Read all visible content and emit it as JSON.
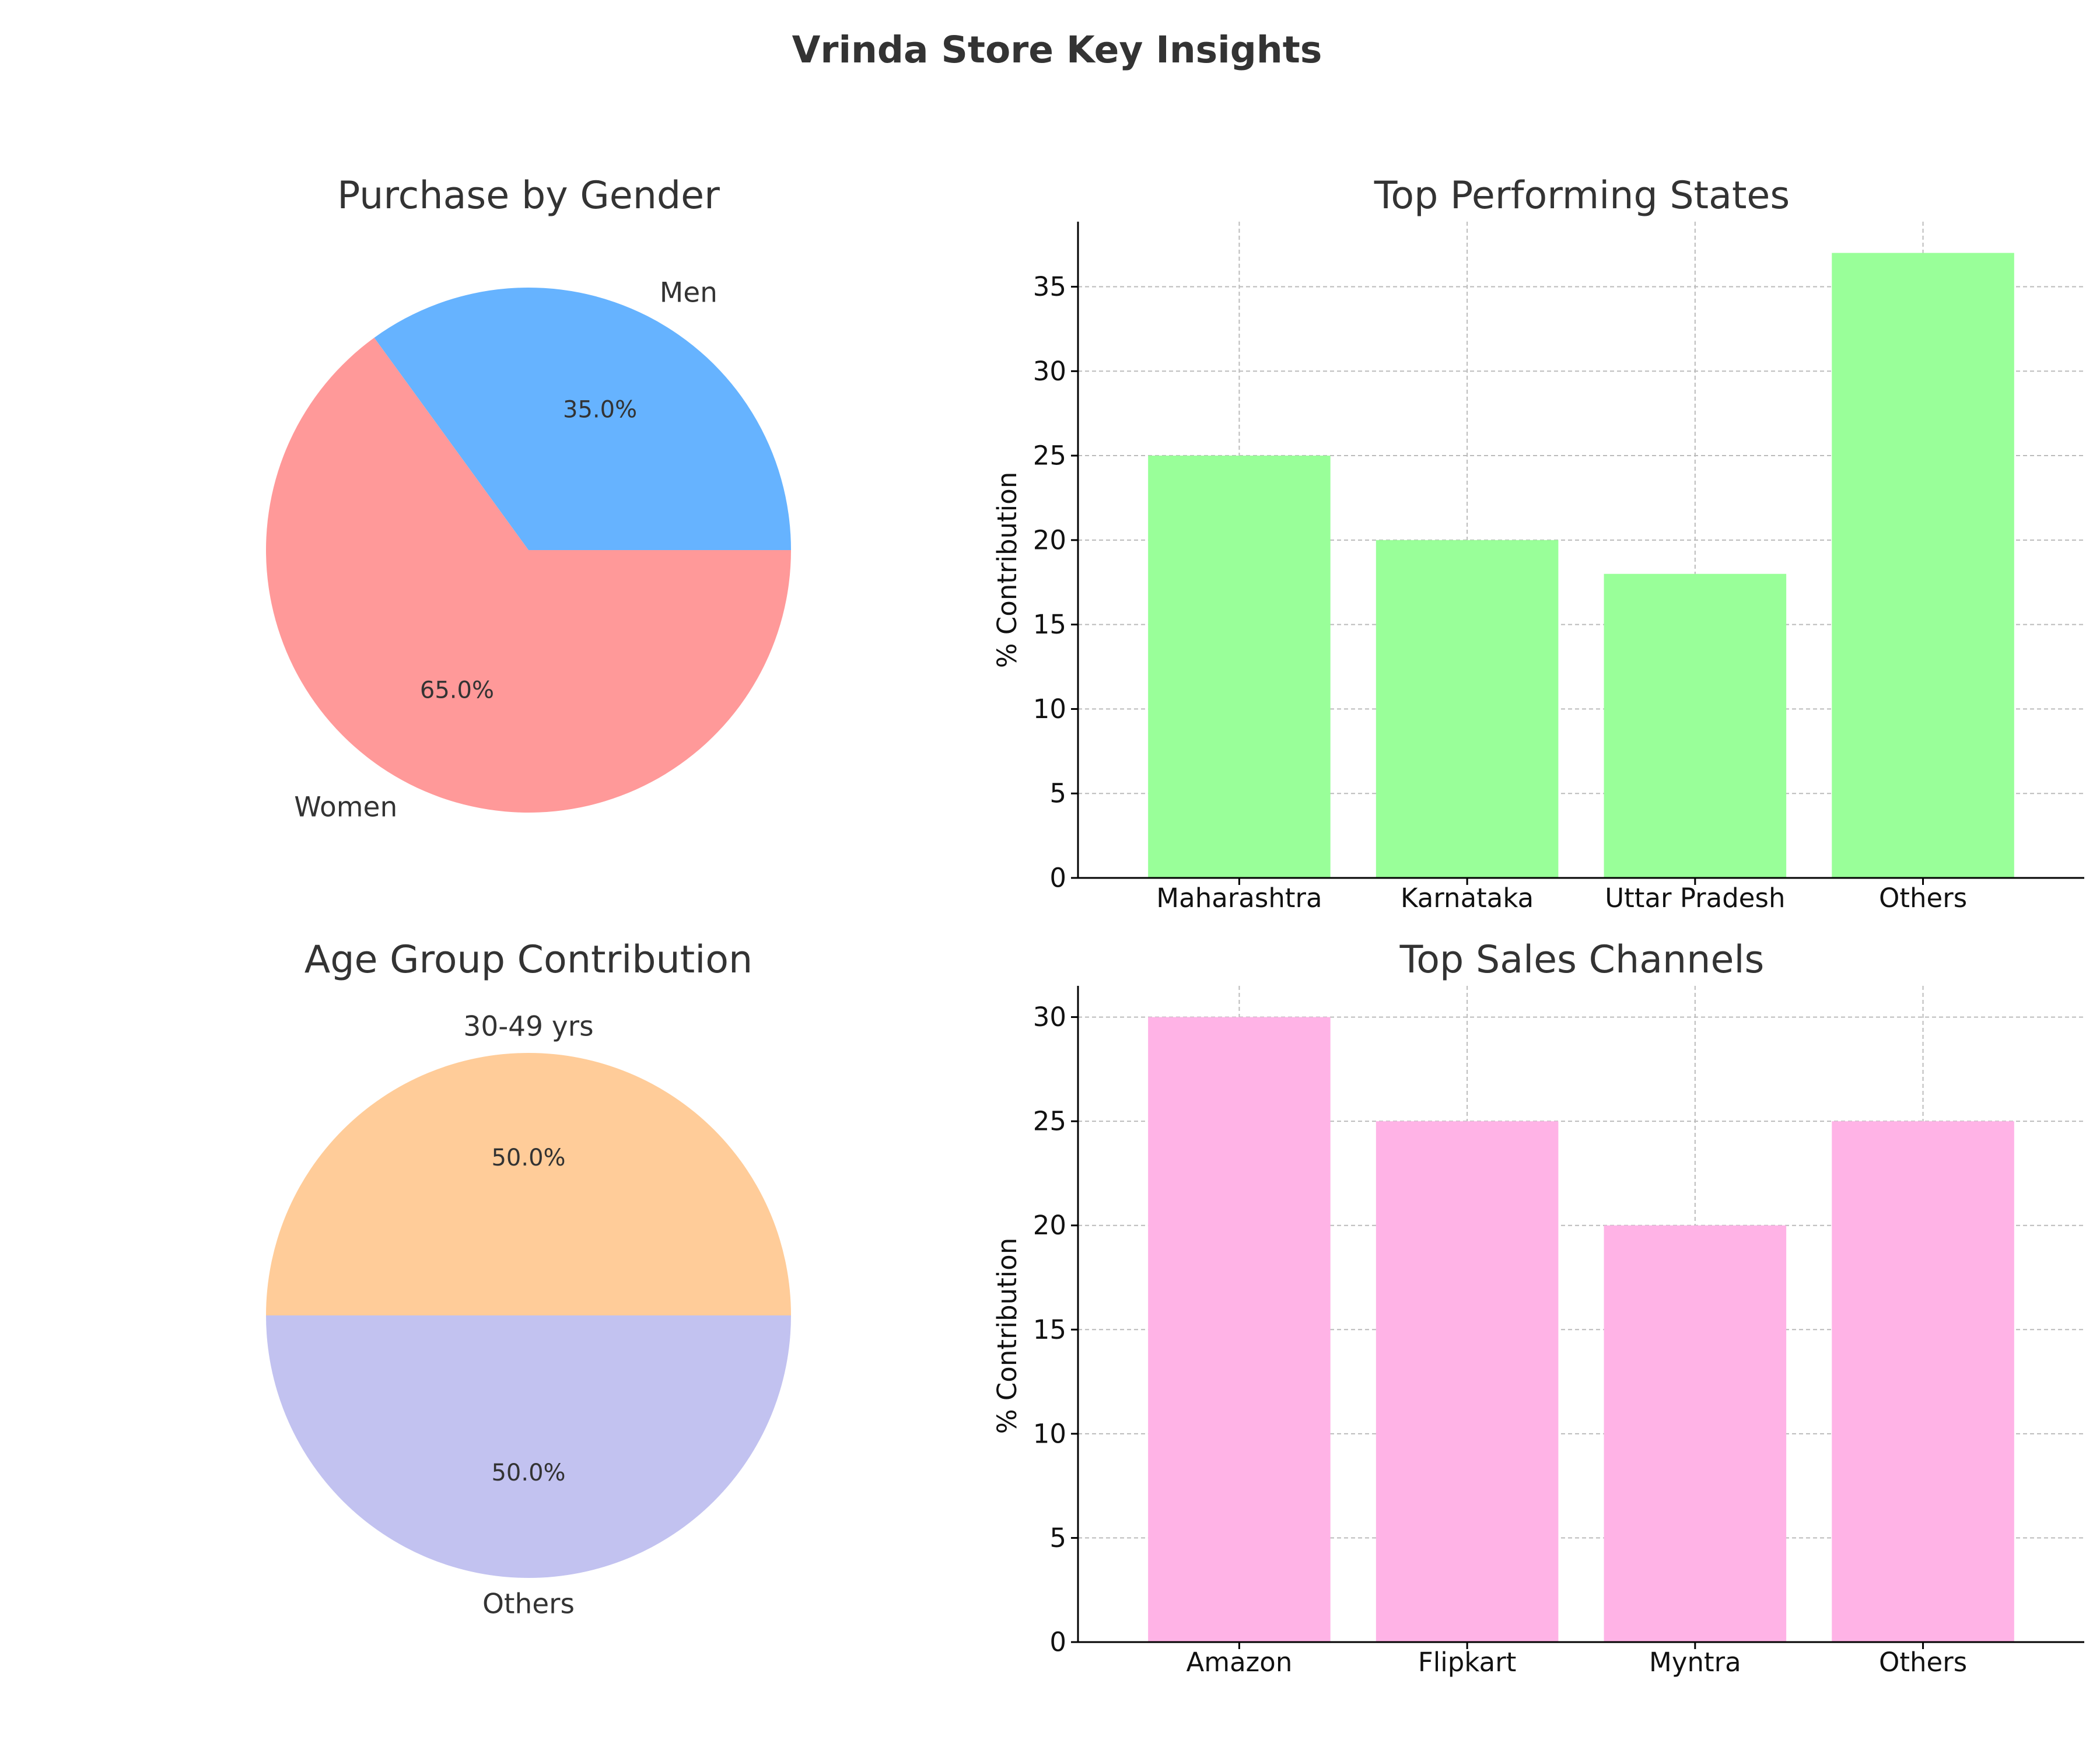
{
  "figure": {
    "title": "Vrinda Store Key Insights"
  },
  "chart_data": [
    {
      "id": "gender",
      "type": "pie",
      "title": "Purchase by Gender",
      "start_angle_deg": 0,
      "slices": [
        {
          "label": "Men",
          "value": 35.0,
          "pct_label": "35.0%",
          "color": "#66b3ff"
        },
        {
          "label": "Women",
          "value": 65.0,
          "pct_label": "65.0%",
          "color": "#ff9999"
        }
      ]
    },
    {
      "id": "states",
      "type": "bar",
      "title": "Top Performing States",
      "ylabel": "% Contribution",
      "xlabel": "",
      "categories": [
        "Maharashtra",
        "Karnataka",
        "Uttar Pradesh",
        "Others"
      ],
      "values": [
        25,
        20,
        18,
        37
      ],
      "ylim": [
        0,
        38.85
      ],
      "yticks": [
        0,
        5,
        10,
        15,
        20,
        25,
        30,
        35
      ],
      "color": "#99ff99",
      "grid": true
    },
    {
      "id": "age",
      "type": "pie",
      "title": "Age Group Contribution",
      "start_angle_deg": 0,
      "slices": [
        {
          "label": "30-49 yrs",
          "value": 50.0,
          "pct_label": "50.0%",
          "color": "#ffcc99"
        },
        {
          "label": "Others",
          "value": 50.0,
          "pct_label": "50.0%",
          "color": "#c2c2f0"
        }
      ]
    },
    {
      "id": "channels",
      "type": "bar",
      "title": "Top Sales Channels",
      "ylabel": "% Contribution",
      "xlabel": "",
      "categories": [
        "Amazon",
        "Flipkart",
        "Myntra",
        "Others"
      ],
      "values": [
        30,
        25,
        20,
        25
      ],
      "ylim": [
        0,
        31.5
      ],
      "yticks": [
        0,
        5,
        10,
        15,
        20,
        25,
        30
      ],
      "color": "#ffb3e6",
      "grid": true
    }
  ]
}
